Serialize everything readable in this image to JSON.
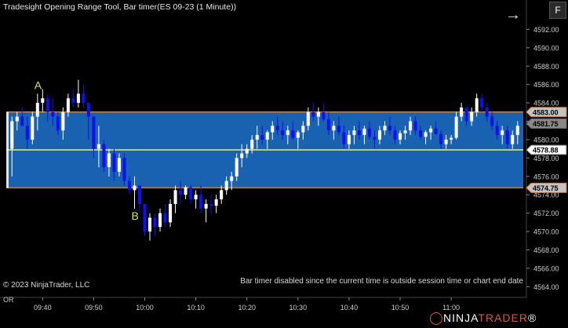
{
  "window": {
    "title": "Tradesight Opening Range Tool, Bar timer(ES 09-23 (1 Minute))",
    "pane_button": "F"
  },
  "footer": {
    "copyright": "© 2023 NinjaTrader, LLC",
    "status_message": "Bar timer disabled since the current time is outside session time or chart end date",
    "corner_label": "OR",
    "brand_prefix": "NINJA",
    "brand_suffix": "TRADER",
    "brand_mark": "®"
  },
  "icons": {
    "nav": "arrow-right-icon",
    "logo": "ninjatrader-logo-icon"
  },
  "colors": {
    "background": "#000000",
    "range_fill": "#1c6bc4",
    "range_border": "#e07b16",
    "midline": "#f0f05a",
    "up_candle": "#ffffff",
    "down_candle": "#1010ee",
    "annotation": "#e0e06a"
  },
  "chart_data": {
    "type": "candlestick",
    "symbol": "ES 09-23",
    "interval": "1 Minute",
    "ylim": [
      4563,
      4594
    ],
    "y_ticks": [
      "4592.00",
      "4590.00",
      "4588.00",
      "4586.00",
      "4584.00",
      "4582.00",
      "4580.00",
      "4578.00",
      "4576.00",
      "4574.00",
      "4572.00",
      "4570.00",
      "4568.00",
      "4566.00",
      "4564.00"
    ],
    "x_ticks": [
      "09:40",
      "09:50",
      "10:00",
      "10:10",
      "10:20",
      "10:30",
      "10:40",
      "10:50",
      "11:00"
    ],
    "opening_range": {
      "high": 4583.0,
      "low": 4574.75,
      "mid": 4578.88
    },
    "price_flags": [
      {
        "label": "4583.00",
        "value": 4583.0
      },
      {
        "label": "4581.75",
        "value": 4581.75
      },
      {
        "label": "4578.88",
        "value": 4578.88
      },
      {
        "label": "4574.75",
        "value": 4574.75
      }
    ],
    "annotations": [
      {
        "text": "A",
        "price": 4585.5,
        "bar": 5
      },
      {
        "text": "B",
        "price": 4571.3,
        "bar": 24
      }
    ],
    "candles": [
      [
        4579.0,
        4582.5,
        4576.0,
        4582.0
      ],
      [
        4582.0,
        4583.0,
        4581.0,
        4582.5
      ],
      [
        4582.5,
        4583.5,
        4581.5,
        4581.5
      ],
      [
        4581.5,
        4582.5,
        4579.0,
        4580.0
      ],
      [
        4580.0,
        4583.0,
        4579.5,
        4582.5
      ],
      [
        4582.5,
        4585.0,
        4581.0,
        4584.0
      ],
      [
        4584.0,
        4585.5,
        4583.0,
        4584.5
      ],
      [
        4584.5,
        4585.0,
        4582.0,
        4583.0
      ],
      [
        4583.0,
        4584.5,
        4581.5,
        4582.5
      ],
      [
        4582.5,
        4583.0,
        4580.5,
        4581.0
      ],
      [
        4581.0,
        4583.5,
        4580.0,
        4583.0
      ],
      [
        4583.0,
        4585.0,
        4582.5,
        4584.5
      ],
      [
        4584.5,
        4585.5,
        4583.5,
        4584.0
      ],
      [
        4584.0,
        4586.5,
        4583.5,
        4585.0
      ],
      [
        4585.0,
        4586.0,
        4583.5,
        4584.0
      ],
      [
        4584.0,
        4584.0,
        4580.0,
        4582.5
      ],
      [
        4582.5,
        4582.5,
        4578.0,
        4579.0
      ],
      [
        4579.0,
        4581.5,
        4577.0,
        4579.5
      ],
      [
        4579.5,
        4580.0,
        4576.5,
        4577.0
      ],
      [
        4577.0,
        4579.0,
        4576.0,
        4578.5
      ],
      [
        4578.5,
        4579.0,
        4575.5,
        4576.5
      ],
      [
        4576.5,
        4578.5,
        4576.0,
        4578.0
      ],
      [
        4578.0,
        4578.5,
        4575.0,
        4575.5
      ],
      [
        4575.5,
        4576.0,
        4574.0,
        4574.5
      ],
      [
        4574.5,
        4576.0,
        4572.5,
        4575.0
      ],
      [
        4575.0,
        4575.0,
        4572.0,
        4573.0
      ],
      [
        4573.0,
        4573.0,
        4569.5,
        4570.0
      ],
      [
        4570.0,
        4572.0,
        4569.0,
        4571.5
      ],
      [
        4571.5,
        4572.0,
        4569.5,
        4570.5
      ],
      [
        4570.5,
        4572.5,
        4570.0,
        4572.0
      ],
      [
        4572.0,
        4573.0,
        4570.5,
        4571.0
      ],
      [
        4571.0,
        4573.5,
        4570.5,
        4573.0
      ],
      [
        4573.0,
        4575.0,
        4572.0,
        4574.5
      ],
      [
        4574.5,
        4575.5,
        4573.0,
        4574.0
      ],
      [
        4574.0,
        4575.0,
        4573.5,
        4574.8
      ],
      [
        4574.8,
        4575.0,
        4573.0,
        4573.5
      ],
      [
        4573.5,
        4574.5,
        4572.5,
        4574.0
      ],
      [
        4574.0,
        4575.0,
        4572.0,
        4572.5
      ],
      [
        4572.5,
        4573.5,
        4571.0,
        4573.0
      ],
      [
        4573.0,
        4574.0,
        4572.0,
        4572.8
      ],
      [
        4572.8,
        4574.0,
        4572.0,
        4573.5
      ],
      [
        4573.5,
        4575.0,
        4573.0,
        4574.5
      ],
      [
        4574.5,
        4576.0,
        4574.0,
        4575.5
      ],
      [
        4575.5,
        4576.5,
        4574.5,
        4576.0
      ],
      [
        4576.0,
        4578.5,
        4575.5,
        4578.0
      ],
      [
        4578.0,
        4579.5,
        4577.0,
        4578.5
      ],
      [
        4578.5,
        4579.5,
        4578.0,
        4579.0
      ],
      [
        4579.0,
        4580.5,
        4578.5,
        4580.0
      ],
      [
        4580.0,
        4581.5,
        4579.0,
        4580.5
      ],
      [
        4580.5,
        4581.5,
        4579.5,
        4580.0
      ],
      [
        4580.0,
        4581.0,
        4579.0,
        4580.8
      ],
      [
        4580.8,
        4582.0,
        4580.0,
        4581.5
      ],
      [
        4581.5,
        4582.5,
        4580.5,
        4581.0
      ],
      [
        4581.0,
        4582.0,
        4580.0,
        4580.5
      ],
      [
        4580.5,
        4581.5,
        4579.5,
        4581.0
      ],
      [
        4581.0,
        4582.0,
        4580.0,
        4580.2
      ],
      [
        4580.2,
        4581.0,
        4579.0,
        4580.8
      ],
      [
        4580.8,
        4582.0,
        4580.0,
        4581.5
      ],
      [
        4581.5,
        4583.5,
        4581.0,
        4583.0
      ],
      [
        4583.0,
        4584.0,
        4582.0,
        4582.5
      ],
      [
        4582.5,
        4583.5,
        4581.5,
        4583.0
      ],
      [
        4583.0,
        4584.0,
        4582.0,
        4582.2
      ],
      [
        4582.2,
        4583.0,
        4580.5,
        4581.0
      ],
      [
        4581.0,
        4582.0,
        4580.0,
        4581.5
      ],
      [
        4581.5,
        4582.5,
        4580.5,
        4580.8
      ],
      [
        4580.8,
        4581.5,
        4579.0,
        4579.5
      ],
      [
        4579.5,
        4581.0,
        4579.0,
        4580.5
      ],
      [
        4580.5,
        4581.5,
        4579.5,
        4581.0
      ],
      [
        4581.0,
        4582.0,
        4580.0,
        4580.5
      ],
      [
        4580.5,
        4581.5,
        4579.5,
        4581.2
      ],
      [
        4581.2,
        4582.0,
        4580.0,
        4580.3
      ],
      [
        4580.3,
        4581.0,
        4579.0,
        4580.0
      ],
      [
        4580.0,
        4581.5,
        4579.5,
        4581.0
      ],
      [
        4581.0,
        4582.0,
        4580.5,
        4581.5
      ],
      [
        4581.5,
        4582.5,
        4580.5,
        4581.0
      ],
      [
        4581.0,
        4581.5,
        4579.5,
        4580.0
      ],
      [
        4580.0,
        4581.0,
        4579.5,
        4580.7
      ],
      [
        4580.7,
        4581.5,
        4580.0,
        4581.0
      ],
      [
        4581.0,
        4582.5,
        4580.5,
        4582.0
      ],
      [
        4582.0,
        4582.5,
        4580.5,
        4581.0
      ],
      [
        4581.0,
        4581.5,
        4580.0,
        4580.3
      ],
      [
        4580.3,
        4581.0,
        4579.5,
        4580.8
      ],
      [
        4580.8,
        4581.5,
        4580.0,
        4581.2
      ],
      [
        4581.2,
        4582.0,
        4580.5,
        4580.6
      ],
      [
        4580.6,
        4581.0,
        4579.0,
        4579.5
      ],
      [
        4579.5,
        4580.5,
        4579.0,
        4580.0
      ],
      [
        4580.0,
        4580.5,
        4579.5,
        4580.2
      ],
      [
        4580.2,
        4583.0,
        4580.0,
        4582.5
      ],
      [
        4582.5,
        4584.0,
        4582.0,
        4583.5
      ],
      [
        4583.5,
        4583.5,
        4581.5,
        4582.0
      ],
      [
        4582.0,
        4583.5,
        4581.5,
        4583.0
      ],
      [
        4583.0,
        4585.0,
        4582.5,
        4584.5
      ],
      [
        4584.5,
        4585.0,
        4583.0,
        4583.5
      ],
      [
        4583.5,
        4584.0,
        4582.0,
        4582.5
      ],
      [
        4582.5,
        4583.0,
        4581.0,
        4581.5
      ],
      [
        4581.5,
        4582.0,
        4580.0,
        4580.5
      ],
      [
        4580.5,
        4581.5,
        4579.5,
        4581.0
      ],
      [
        4581.0,
        4581.5,
        4579.0,
        4579.5
      ],
      [
        4579.5,
        4581.0,
        4579.0,
        4580.5
      ],
      [
        4580.5,
        4582.0,
        4579.5,
        4581.5
      ]
    ]
  }
}
